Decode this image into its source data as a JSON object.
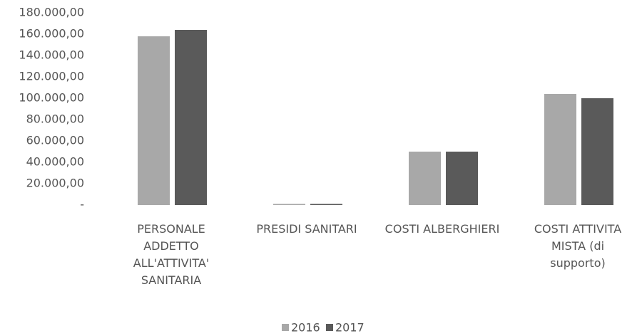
{
  "chart_data": {
    "type": "bar",
    "categories": [
      "PERSONALE ADDETTO ALL'ATTIVITA' SANITARIA",
      "PRESIDI SANITARI",
      "COSTI ALBERGHIERI",
      "COSTI ATTIVITA MISTA (di supporto)"
    ],
    "series": [
      {
        "name": "2016",
        "color": "#a8a8a8",
        "values": [
          158000,
          1000,
          50000,
          104000
        ]
      },
      {
        "name": "2017",
        "color": "#5a5a5a",
        "values": [
          164000,
          1000,
          50000,
          100000
        ]
      }
    ],
    "ylim": [
      0,
      180000
    ],
    "yticks": [
      {
        "value": 0,
        "label": "-"
      },
      {
        "value": 20000,
        "label": "20.000,00"
      },
      {
        "value": 40000,
        "label": "40.000,00"
      },
      {
        "value": 60000,
        "label": "60.000,00"
      },
      {
        "value": 80000,
        "label": "80.000,00"
      },
      {
        "value": 100000,
        "label": "100.000,00"
      },
      {
        "value": 120000,
        "label": "120.000,00"
      },
      {
        "value": 140000,
        "label": "140.000,00"
      },
      {
        "value": 160000,
        "label": "160.000,00"
      },
      {
        "value": 180000,
        "label": "180.000,00"
      }
    ],
    "legend": "bottom"
  }
}
